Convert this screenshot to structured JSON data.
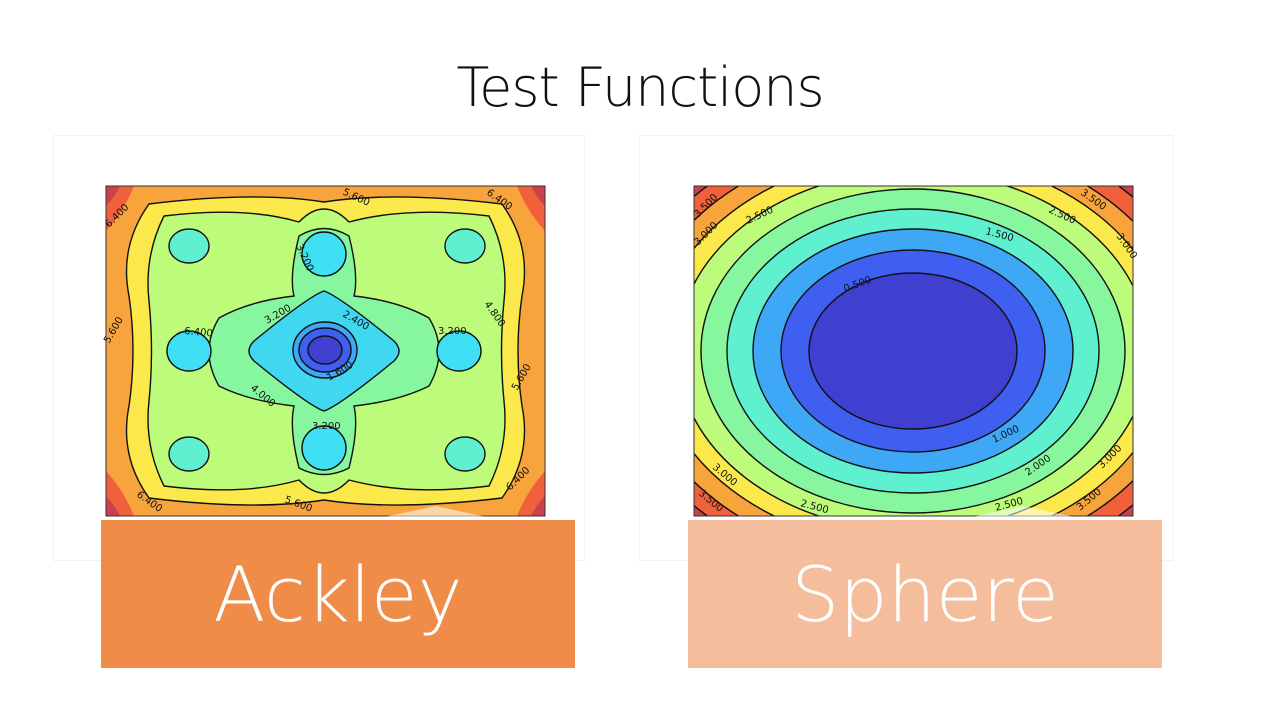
{
  "slide": {
    "title": "Test Functions"
  },
  "plots": [
    {
      "id": "ackley",
      "caption": "Ackley",
      "caption_color": "#ef8c47",
      "contour_labels": [
        "6.400",
        "5.600",
        "6.400",
        "6.400",
        "4.800",
        "5.600",
        "5.600",
        "3.200",
        "3.200",
        "2.400",
        "3.200",
        "3.200",
        "1.600",
        "4.000",
        "3.200",
        "6.400",
        "5.600",
        "6.400"
      ]
    },
    {
      "id": "sphere",
      "caption": "Sphere",
      "caption_color": "#f4be9c",
      "contour_labels": [
        "3.500",
        "2.500",
        "3.500",
        "2.500",
        "3.000",
        "1.500",
        "3.000",
        "0.500",
        "1.000",
        "2.000",
        "3.000",
        "3.000",
        "3.500",
        "2.500",
        "2.500",
        "3.500"
      ]
    }
  ],
  "palette": {
    "red": "#c8414b",
    "orange_red": "#f0603a",
    "orange": "#f8a43c",
    "yellow": "#fbe84a",
    "yellow_green": "#bdfb7a",
    "light_green": "#86f79e",
    "cyan_green": "#5ff0d0",
    "cyan": "#3fe0f4",
    "light_blue": "#3fa8f6",
    "blue": "#3f5ff0",
    "deep_blue": "#3f3fd0"
  }
}
